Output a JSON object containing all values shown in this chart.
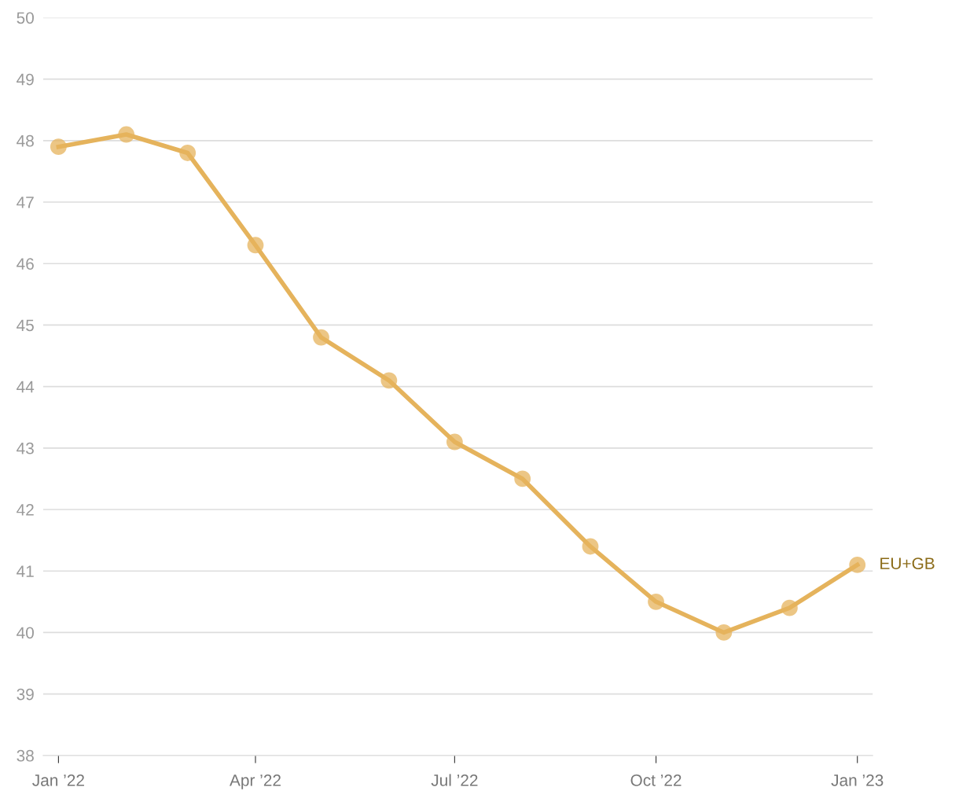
{
  "chart_data": {
    "type": "line",
    "x": [
      "2022-01",
      "2022-02",
      "2022-03",
      "2022-04",
      "2022-05",
      "2022-06",
      "2022-07",
      "2022-08",
      "2022-09",
      "2022-10",
      "2022-11",
      "2022-12",
      "2023-01"
    ],
    "series": [
      {
        "name": "EU+GB",
        "color": "#e5b35c",
        "values": [
          47.9,
          48.1,
          47.8,
          46.3,
          44.8,
          44.1,
          43.1,
          42.5,
          41.4,
          40.5,
          40.0,
          40.4,
          41.1
        ]
      }
    ],
    "xlim": [
      "2021-12-25",
      "2023-01-08"
    ],
    "xticks": [
      {
        "value": "2022-01",
        "label": "Jan ’22"
      },
      {
        "value": "2022-04",
        "label": "Apr ’22"
      },
      {
        "value": "2022-07",
        "label": "Jul ’22"
      },
      {
        "value": "2022-10",
        "label": "Oct ’22"
      },
      {
        "value": "2023-01",
        "label": "Jan ’23"
      }
    ],
    "ylim": [
      38,
      50
    ],
    "yticks": [
      38,
      39,
      40,
      41,
      42,
      43,
      44,
      45,
      46,
      47,
      48,
      49,
      50
    ],
    "grid": "y",
    "marker": "circle",
    "line_style": "solid"
  }
}
